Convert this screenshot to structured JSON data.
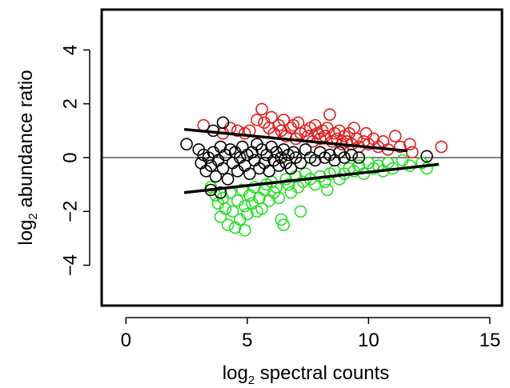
{
  "chart_data": {
    "type": "scatter",
    "xlabel": {
      "prefix": "log",
      "subscript": "2",
      "rest": " spectral counts"
    },
    "ylabel": {
      "prefix": "log",
      "subscript": "2",
      "rest": " abundance ratio"
    },
    "xlim": [
      -1,
      15.5
    ],
    "ylim": [
      -5.5,
      5.5
    ],
    "x_ticks": [
      0,
      5,
      10,
      15
    ],
    "y_ticks": [
      -4,
      -2,
      0,
      2,
      4
    ],
    "x_tick_labels": [
      "0",
      "5",
      "10",
      "15"
    ],
    "y_tick_labels": [
      "−4",
      "−2",
      "0",
      "2",
      "4"
    ],
    "reference_line_y": 0,
    "colors": {
      "up": "#e11b1b",
      "down": "#22e022",
      "neutral": "#000000",
      "axis": "#000000"
    },
    "series": [
      {
        "color": "#e11b1b",
        "points": [
          [
            3.2,
            1.2
          ],
          [
            4.0,
            0.9
          ],
          [
            4.3,
            1.1
          ],
          [
            4.6,
            1.0
          ],
          [
            4.9,
            0.9
          ],
          [
            5.1,
            1.0
          ],
          [
            5.4,
            1.4
          ],
          [
            5.6,
            1.8
          ],
          [
            5.7,
            1.3
          ],
          [
            5.9,
            1.1
          ],
          [
            6.0,
            1.5
          ],
          [
            6.1,
            0.9
          ],
          [
            6.3,
            1.2
          ],
          [
            6.4,
            1.0
          ],
          [
            6.5,
            1.4
          ],
          [
            6.6,
            0.8
          ],
          [
            6.8,
            1.1
          ],
          [
            6.9,
            1.2
          ],
          [
            7.0,
            0.7
          ],
          [
            7.1,
            1.3
          ],
          [
            7.2,
            0.9
          ],
          [
            7.4,
            1.0
          ],
          [
            7.5,
            0.8
          ],
          [
            7.6,
            1.1
          ],
          [
            7.7,
            0.6
          ],
          [
            7.8,
            1.2
          ],
          [
            7.9,
            0.9
          ],
          [
            8.0,
            0.7
          ],
          [
            8.1,
            1.0
          ],
          [
            8.2,
            0.8
          ],
          [
            8.3,
            1.1
          ],
          [
            8.4,
            1.6
          ],
          [
            8.5,
            0.6
          ],
          [
            8.6,
            0.9
          ],
          [
            8.7,
            0.7
          ],
          [
            8.8,
            1.0
          ],
          [
            8.9,
            0.5
          ],
          [
            9.0,
            0.8
          ],
          [
            9.1,
            0.6
          ],
          [
            9.2,
            0.9
          ],
          [
            9.3,
            0.5
          ],
          [
            9.4,
            1.1
          ],
          [
            9.5,
            0.7
          ],
          [
            9.6,
            0.4
          ],
          [
            9.8,
            0.6
          ],
          [
            9.9,
            0.9
          ],
          [
            10.0,
            0.5
          ],
          [
            10.2,
            0.7
          ],
          [
            10.4,
            0.4
          ],
          [
            10.6,
            0.6
          ],
          [
            10.8,
            0.3
          ],
          [
            11.1,
            0.8
          ],
          [
            11.3,
            0.4
          ],
          [
            11.7,
            0.5
          ],
          [
            11.8,
            0.2
          ],
          [
            13.0,
            0.4
          ]
        ]
      },
      {
        "color": "#22e022",
        "points": [
          [
            3.5,
            -1.1
          ],
          [
            3.7,
            -1.4
          ],
          [
            3.8,
            -1.7
          ],
          [
            3.9,
            -2.2
          ],
          [
            4.0,
            -1.5
          ],
          [
            4.1,
            -1.9
          ],
          [
            4.2,
            -2.5
          ],
          [
            4.3,
            -1.3
          ],
          [
            4.4,
            -2.0
          ],
          [
            4.5,
            -2.6
          ],
          [
            4.6,
            -1.6
          ],
          [
            4.7,
            -2.3
          ],
          [
            4.8,
            -1.2
          ],
          [
            4.9,
            -2.7
          ],
          [
            4.9,
            -1.8
          ],
          [
            5.0,
            -2.1
          ],
          [
            5.1,
            -1.4
          ],
          [
            5.2,
            -1.7
          ],
          [
            5.3,
            -1.1
          ],
          [
            5.4,
            -2.0
          ],
          [
            5.5,
            -1.5
          ],
          [
            5.6,
            -1.9
          ],
          [
            5.7,
            -1.2
          ],
          [
            5.8,
            -1.0
          ],
          [
            5.9,
            -1.6
          ],
          [
            6.0,
            -0.9
          ],
          [
            6.1,
            -1.3
          ],
          [
            6.2,
            -1.1
          ],
          [
            6.3,
            -1.5
          ],
          [
            6.4,
            -2.3
          ],
          [
            6.5,
            -2.5
          ],
          [
            6.6,
            -0.8
          ],
          [
            6.7,
            -1.0
          ],
          [
            6.8,
            -1.3
          ],
          [
            7.0,
            -0.7
          ],
          [
            7.1,
            -1.1
          ],
          [
            7.2,
            -2.0
          ],
          [
            7.3,
            -0.9
          ],
          [
            7.4,
            -0.6
          ],
          [
            7.6,
            -0.8
          ],
          [
            7.8,
            -1.0
          ],
          [
            8.0,
            -0.7
          ],
          [
            8.2,
            -0.9
          ],
          [
            8.3,
            -1.2
          ],
          [
            8.4,
            -0.6
          ],
          [
            8.6,
            -0.5
          ],
          [
            8.8,
            -0.8
          ],
          [
            9.0,
            -0.6
          ],
          [
            9.2,
            -0.4
          ],
          [
            9.4,
            -0.5
          ],
          [
            9.6,
            -0.3
          ],
          [
            9.8,
            -0.6
          ],
          [
            10.0,
            -0.2
          ],
          [
            10.2,
            -0.4
          ],
          [
            10.4,
            -0.3
          ],
          [
            10.6,
            -0.5
          ],
          [
            10.8,
            -0.2
          ],
          [
            11.0,
            -0.4
          ],
          [
            11.4,
            -0.1
          ],
          [
            11.7,
            -0.3
          ],
          [
            12.2,
            -0.2
          ],
          [
            12.4,
            -0.4
          ]
        ]
      },
      {
        "color": "#000000",
        "points": [
          [
            2.5,
            0.5
          ],
          [
            3.0,
            0.3
          ],
          [
            3.1,
            -0.2
          ],
          [
            3.2,
            0.1
          ],
          [
            3.3,
            -0.5
          ],
          [
            3.4,
            0.0
          ],
          [
            3.5,
            -0.3
          ],
          [
            3.6,
            0.2
          ],
          [
            3.7,
            -0.7
          ],
          [
            3.8,
            -0.1
          ],
          [
            3.9,
            0.4
          ],
          [
            4.0,
            -0.4
          ],
          [
            4.1,
            0.1
          ],
          [
            4.2,
            -0.8
          ],
          [
            4.3,
            0.3
          ],
          [
            4.4,
            -0.2
          ],
          [
            4.5,
            0.2
          ],
          [
            4.6,
            -0.5
          ],
          [
            4.7,
            0.0
          ],
          [
            4.8,
            0.4
          ],
          [
            4.9,
            -0.3
          ],
          [
            5.0,
            0.1
          ],
          [
            5.1,
            -0.6
          ],
          [
            5.2,
            0.2
          ],
          [
            5.3,
            -0.1
          ],
          [
            5.4,
            0.5
          ],
          [
            5.5,
            -0.4
          ],
          [
            5.6,
            0.3
          ],
          [
            5.7,
            -0.2
          ],
          [
            5.8,
            0.1
          ],
          [
            5.9,
            -0.5
          ],
          [
            6.0,
            0.4
          ],
          [
            6.1,
            -0.1
          ],
          [
            6.2,
            0.2
          ],
          [
            6.3,
            -0.3
          ],
          [
            6.4,
            0.0
          ],
          [
            6.5,
            0.3
          ],
          [
            6.6,
            -0.2
          ],
          [
            6.7,
            0.1
          ],
          [
            6.8,
            -0.4
          ],
          [
            6.9,
            0.2
          ],
          [
            7.0,
            0.0
          ],
          [
            7.2,
            -0.2
          ],
          [
            7.4,
            0.3
          ],
          [
            7.6,
            0.0
          ],
          [
            7.8,
            -0.1
          ],
          [
            8.0,
            0.2
          ],
          [
            8.2,
            0.0
          ],
          [
            8.4,
            0.1
          ],
          [
            8.6,
            -0.1
          ],
          [
            8.8,
            0.2
          ],
          [
            9.0,
            0.0
          ],
          [
            9.3,
            0.1
          ],
          [
            9.6,
            0.0
          ],
          [
            3.5,
            -1.2
          ],
          [
            3.9,
            -1.3
          ],
          [
            4.0,
            1.3
          ],
          [
            3.6,
            1.0
          ],
          [
            12.4,
            0.05
          ]
        ]
      }
    ],
    "trend_lines": [
      {
        "from": [
          2.4,
          1.05
        ],
        "to": [
          11.6,
          0.25
        ]
      },
      {
        "from": [
          2.4,
          -1.3
        ],
        "to": [
          12.9,
          -0.25
        ]
      }
    ]
  }
}
